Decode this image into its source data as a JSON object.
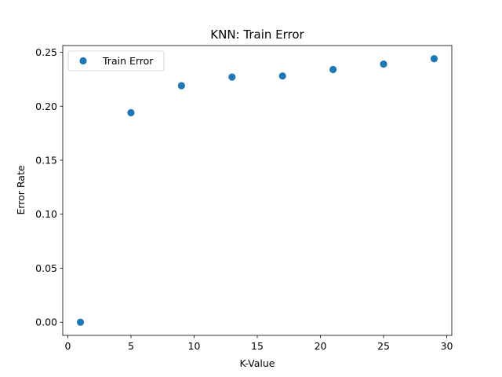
{
  "chart_data": {
    "type": "scatter",
    "title": "KNN: Train Error",
    "xlabel": "K-Value",
    "ylabel": "Error Rate",
    "xlim": [
      -0.4,
      30.4
    ],
    "ylim": [
      -0.0122,
      0.2562
    ],
    "xticks": [
      0,
      5,
      10,
      15,
      20,
      25,
      30
    ],
    "yticks": [
      0.0,
      0.05,
      0.1,
      0.15,
      0.2,
      0.25
    ],
    "xtick_labels": [
      "0",
      "5",
      "10",
      "15",
      "20",
      "25",
      "30"
    ],
    "ytick_labels": [
      "0.00",
      "0.05",
      "0.10",
      "0.15",
      "0.20",
      "0.25"
    ],
    "legend": {
      "placement": "top-left"
    },
    "series": [
      {
        "name": "Train Error",
        "color": "#1f77b4",
        "x": [
          1,
          5,
          9,
          13,
          17,
          21,
          25,
          29
        ],
        "y": [
          0.0,
          0.194,
          0.219,
          0.227,
          0.228,
          0.234,
          0.239,
          0.244
        ]
      }
    ]
  }
}
